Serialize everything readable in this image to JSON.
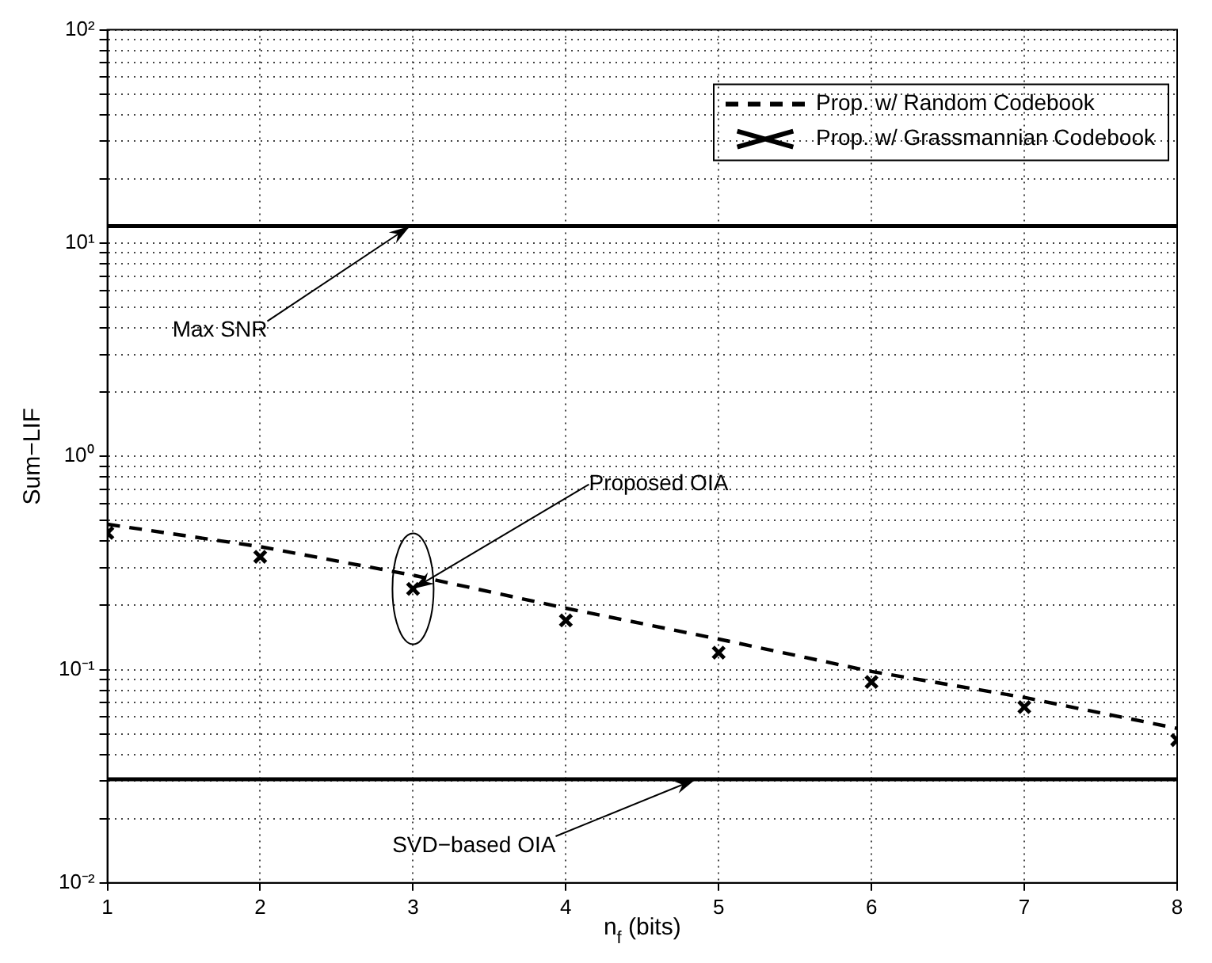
{
  "chart_data": {
    "type": "line",
    "xlabel": "n$_{f}$ (bits)",
    "ylabel": "Sum−LIF",
    "x": [
      1,
      2,
      3,
      4,
      5,
      6,
      7,
      8
    ],
    "series": [
      {
        "name": "Prop. w/ Random Codebook",
        "type": "line",
        "color": "#000000",
        "marker": "none",
        "line_style": "dashed",
        "values": [
          0.48,
          0.377,
          0.277,
          0.194,
          0.139,
          0.098,
          0.074,
          0.053
        ]
      },
      {
        "name": "Prop. w/ Grassmannian Codebook",
        "type": "scatter",
        "color": "#000000",
        "marker": "cross",
        "values": [
          0.437,
          0.338,
          0.239,
          0.17,
          0.12,
          0.0875,
          0.0667,
          0.0467
        ]
      }
    ],
    "ref_lines": [
      {
        "axis": "y",
        "value": 12,
        "color": "#000000",
        "line_style": "solid"
      },
      {
        "axis": "y",
        "value": 0.0306,
        "color": "#000000",
        "line_style": "solid"
      }
    ],
    "annotations": [
      {
        "text": "Max SNR",
        "x": 2.98,
        "y": 12
      },
      {
        "text": "Proposed OIA",
        "x": 3,
        "y": 0.239
      },
      {
        "text": "SVD−based OIA",
        "x": 4.85,
        "y": 0.0306
      }
    ],
    "xlim": [
      1,
      8
    ],
    "xticks": [
      1,
      2,
      3,
      4,
      5,
      6,
      7,
      8
    ],
    "ylim": [
      0.01,
      100
    ],
    "log": "y",
    "yticks": [
      {
        "value": 0.01,
        "label": "10⁻²"
      },
      {
        "value": 0.02,
        "label": null
      },
      {
        "value": 0.03,
        "label": null
      },
      {
        "value": 0.04,
        "label": null
      },
      {
        "value": 0.05,
        "label": null
      },
      {
        "value": 0.06,
        "label": null
      },
      {
        "value": 0.07,
        "label": null
      },
      {
        "value": 0.08,
        "label": null
      },
      {
        "value": 0.09,
        "label": null
      },
      {
        "value": 0.1,
        "label": "10⁻¹"
      },
      {
        "value": 0.2,
        "label": null
      },
      {
        "value": 0.3,
        "label": null
      },
      {
        "value": 0.4,
        "label": null
      },
      {
        "value": 0.5,
        "label": null
      },
      {
        "value": 0.6,
        "label": null
      },
      {
        "value": 0.7,
        "label": null
      },
      {
        "value": 0.8,
        "label": null
      },
      {
        "value": 0.9,
        "label": null
      },
      {
        "value": 1,
        "label": "10⁰"
      },
      {
        "value": 2,
        "label": null
      },
      {
        "value": 3,
        "label": null
      },
      {
        "value": 4,
        "label": null
      },
      {
        "value": 5,
        "label": null
      },
      {
        "value": 6,
        "label": null
      },
      {
        "value": 7,
        "label": null
      },
      {
        "value": 8,
        "label": null
      },
      {
        "value": 9,
        "label": null
      },
      {
        "value": 10,
        "label": "10¹"
      },
      {
        "value": 20,
        "label": null
      },
      {
        "value": 30,
        "label": null
      },
      {
        "value": 40,
        "label": null
      },
      {
        "value": 50,
        "label": null
      },
      {
        "value": 60,
        "label": null
      },
      {
        "value": 70,
        "label": null
      },
      {
        "value": 80,
        "label": null
      },
      {
        "value": 90,
        "label": null
      },
      {
        "value": 100,
        "label": "10²"
      }
    ],
    "grid": true,
    "legend": "top right"
  }
}
